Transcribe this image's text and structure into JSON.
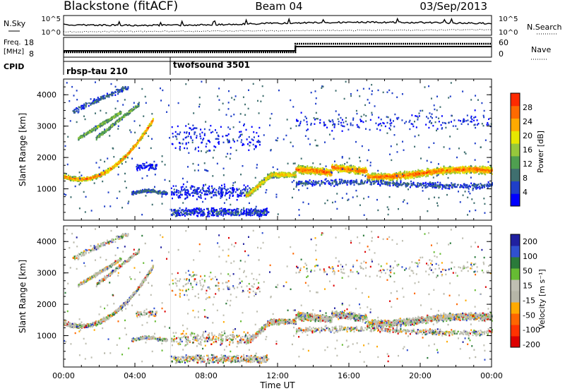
{
  "header": {
    "station": "Blackstone (fitACF)",
    "beam": "Beam 04",
    "date": "03/Sep/2013"
  },
  "noise_panel": {
    "left_label": "N.Sky",
    "left_ticks": [
      "10^5",
      "10^0"
    ],
    "right_label": "N.Search",
    "right_ticks": [
      "10^5",
      "10^0"
    ]
  },
  "freq_panel": {
    "left_label_line1": "Freq.",
    "left_label_line2": "[MHz]",
    "left_ticks": [
      "18",
      "8"
    ],
    "right_label": "Nave",
    "right_ticks": [
      "60",
      "0"
    ]
  },
  "cpid": {
    "label": "CPID",
    "modes": [
      {
        "name": "rbsp-tau 210",
        "start_hour": 0
      },
      {
        "name": "twofsound 3501",
        "start_hour": 6
      }
    ]
  },
  "colors": {
    "power_scale": [
      "#0000ff",
      "#1f3fc8",
      "#3f6f6f",
      "#4f9f50",
      "#96c83c",
      "#e6e600",
      "#ffaa00",
      "#ff6a00",
      "#ff2a00"
    ],
    "velocity_scale": [
      "#2020a0",
      "#3050d0",
      "#2a7a3a",
      "#66bb33",
      "#bfbfb2",
      "#b6b6a8",
      "#ffaa00",
      "#ff6600",
      "#ff3300",
      "#dd0000"
    ]
  },
  "chart_data": [
    {
      "type": "heatmap",
      "title": "Power",
      "xlabel": "",
      "ylabel": "Slant Range [km]",
      "x_ticks": [
        "00:00",
        "04:00",
        "08:00",
        "12:00",
        "16:00",
        "20:00",
        "00:00"
      ],
      "xlim_hours": [
        0,
        24
      ],
      "y_ticks": [
        1000,
        2000,
        3000,
        4000
      ],
      "ylim": [
        0,
        4500
      ],
      "colorbar": {
        "label": "Power [dB]",
        "ticks": [
          4,
          8,
          12,
          16,
          20,
          24,
          28
        ],
        "range": [
          0,
          32
        ]
      }
    },
    {
      "type": "heatmap",
      "title": "Velocity",
      "xlabel": "Time UT",
      "ylabel": "Slant Range [km]",
      "x_ticks": [
        "00:00",
        "04:00",
        "08:00",
        "12:00",
        "16:00",
        "20:00",
        "00:00"
      ],
      "xlim_hours": [
        0,
        24
      ],
      "y_ticks": [
        1000,
        2000,
        3000,
        4000
      ],
      "ylim": [
        0,
        4500
      ],
      "colorbar": {
        "label": "Velocity [m s⁻¹]",
        "ticks": [
          200,
          100,
          50,
          15,
          -15,
          -50,
          -100,
          -200
        ]
      }
    }
  ]
}
